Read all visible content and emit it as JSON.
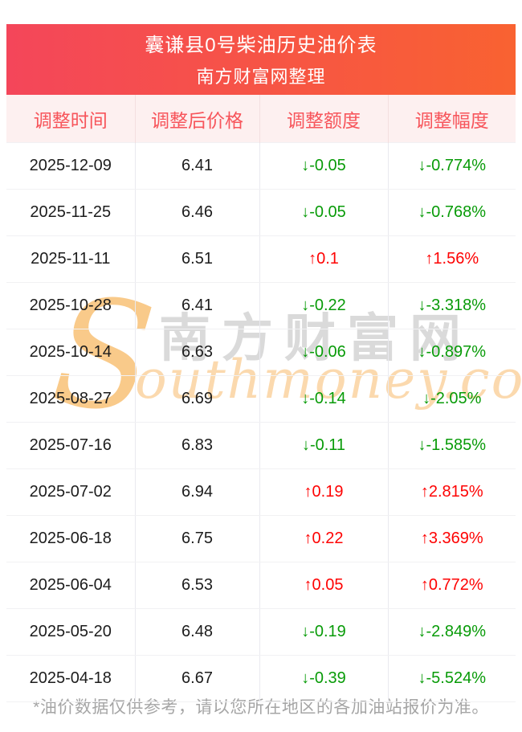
{
  "banner": {
    "title": "囊谦县0号柴油历史油价表",
    "subtitle": "南方财富网整理",
    "gradient_left": "#f4465a",
    "gradient_right": "#f96231",
    "text_color": "#ffffff"
  },
  "table": {
    "header_bg": "#fdf0f0",
    "header_text_color": "#f7555b",
    "up_color": "#fe0202",
    "down_color": "#089b08",
    "cell_names": [
      "date-cell",
      "price-cell",
      "change-cell",
      "percent-cell"
    ]
  },
  "watermark": {
    "initial": "S",
    "brand_cn": "南方财富网",
    "brand_en": "outhmoney.com",
    "swoosh_color": "#f8bd6e",
    "cn_color": "#bdbdbd",
    "en_color": "#fbd3a0"
  },
  "footer": {
    "note": "*油价数据仅供参考，请以您所在地区的各加油站报价为准。"
  },
  "chart_data": {
    "type": "table",
    "title": "囊谦县0号柴油历史油价表",
    "subtitle": "南方财富网整理",
    "columns": [
      "调整时间",
      "调整后价格",
      "调整额度",
      "调整幅度"
    ],
    "rows": [
      [
        "2025-12-09",
        "6.41",
        "↓-0.05",
        "↓-0.774%"
      ],
      [
        "2025-11-25",
        "6.46",
        "↓-0.05",
        "↓-0.768%"
      ],
      [
        "2025-11-11",
        "6.51",
        "↑0.1",
        "↑1.56%"
      ],
      [
        "2025-10-28",
        "6.41",
        "↓-0.22",
        "↓-3.318%"
      ],
      [
        "2025-10-14",
        "6.63",
        "↓-0.06",
        "↓-0.897%"
      ],
      [
        "2025-08-27",
        "6.69",
        "↓-0.14",
        "↓-2.05%"
      ],
      [
        "2025-07-16",
        "6.83",
        "↓-0.11",
        "↓-1.585%"
      ],
      [
        "2025-07-02",
        "6.94",
        "↑0.19",
        "↑2.815%"
      ],
      [
        "2025-06-18",
        "6.75",
        "↑0.22",
        "↑3.369%"
      ],
      [
        "2025-06-04",
        "6.53",
        "↑0.05",
        "↑0.772%"
      ],
      [
        "2025-05-20",
        "6.48",
        "↓-0.19",
        "↓-2.849%"
      ],
      [
        "2025-04-18",
        "6.67",
        "↓-0.39",
        "↓-5.524%"
      ]
    ]
  }
}
